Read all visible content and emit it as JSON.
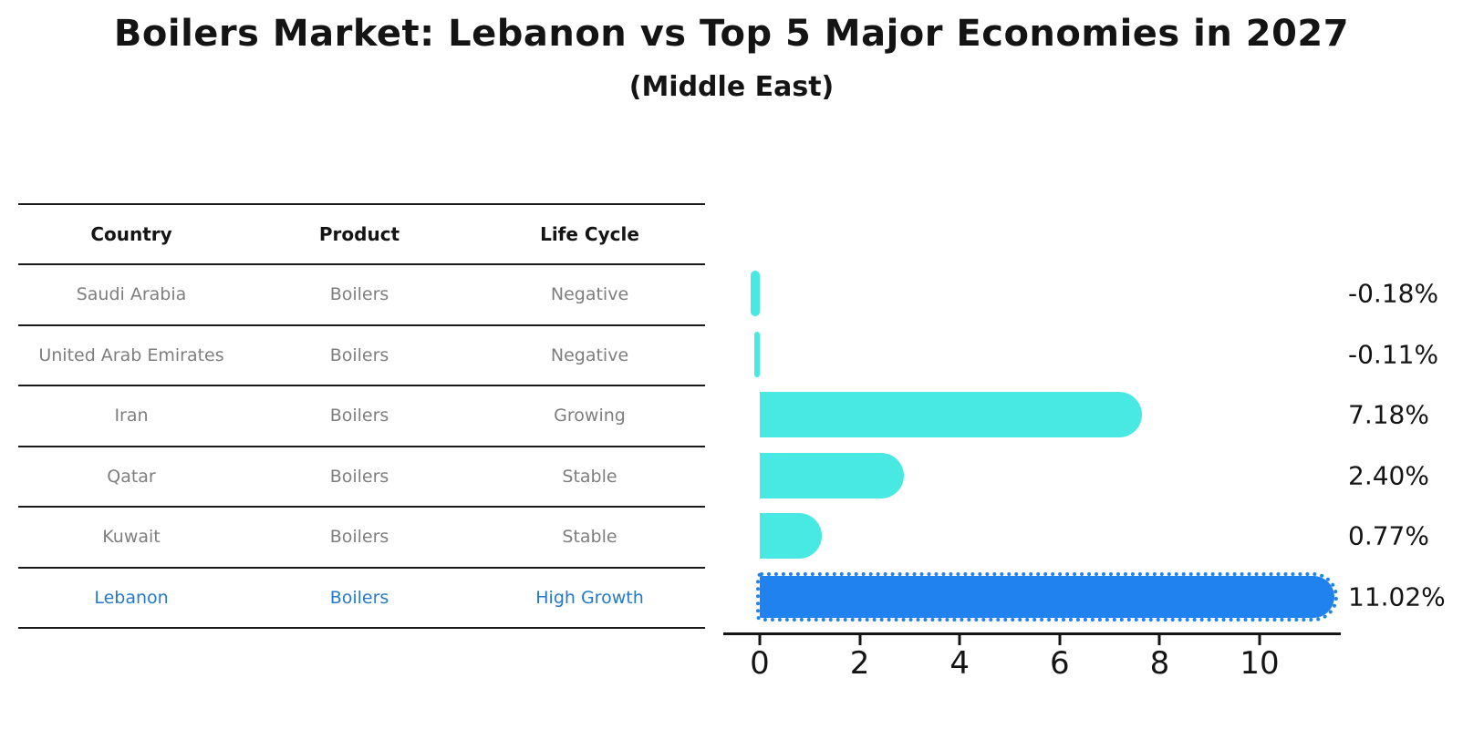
{
  "title": "Boilers Market: Lebanon vs Top 5 Major Economies in 2027",
  "subtitle": "(Middle East)",
  "table": {
    "headers": {
      "country": "Country",
      "product": "Product",
      "life_cycle": "Life Cycle"
    },
    "rows": [
      {
        "country": "Saudi Arabia",
        "product": "Boilers",
        "life_cycle": "Negative"
      },
      {
        "country": "United Arab Emirates",
        "product": "Boilers",
        "life_cycle": "Negative"
      },
      {
        "country": "Iran",
        "product": "Boilers",
        "life_cycle": "Growing"
      },
      {
        "country": "Qatar",
        "product": "Boilers",
        "life_cycle": "Stable"
      },
      {
        "country": "Kuwait",
        "product": "Boilers",
        "life_cycle": "Stable"
      },
      {
        "country": "Lebanon",
        "product": "Boilers",
        "life_cycle": "High Growth"
      }
    ],
    "highlighted_country": "Lebanon"
  },
  "chart_data": {
    "type": "bar",
    "orientation": "horizontal",
    "title": "Boilers Market: Lebanon vs Top 5 Major Economies in 2027",
    "subtitle": "(Middle East)",
    "categories": [
      "Saudi Arabia",
      "United Arab Emirates",
      "Iran",
      "Qatar",
      "Kuwait",
      "Lebanon"
    ],
    "values": [
      -0.18,
      -0.11,
      7.18,
      2.4,
      0.77,
      11.02
    ],
    "value_labels": [
      "-0.18%",
      "-0.11%",
      "7.18%",
      "2.40%",
      "0.77%",
      "11.02%"
    ],
    "unit": "percent",
    "x_ticks": [
      "0",
      "2",
      "4",
      "6",
      "8",
      "10"
    ],
    "xlim": [
      -0.73,
      11.6
    ],
    "grid": false,
    "legend": false,
    "bar_color": "#48E9E2",
    "highlight_color": "#1F82EE",
    "highlight_index": 5,
    "highlight_outline": "dotted"
  },
  "colors": {
    "background": "#FFFFFF",
    "title_text": "#141414",
    "table_muted_text": "#7E7E7E",
    "highlight_text": "#2579CB",
    "axis": "#151515"
  }
}
